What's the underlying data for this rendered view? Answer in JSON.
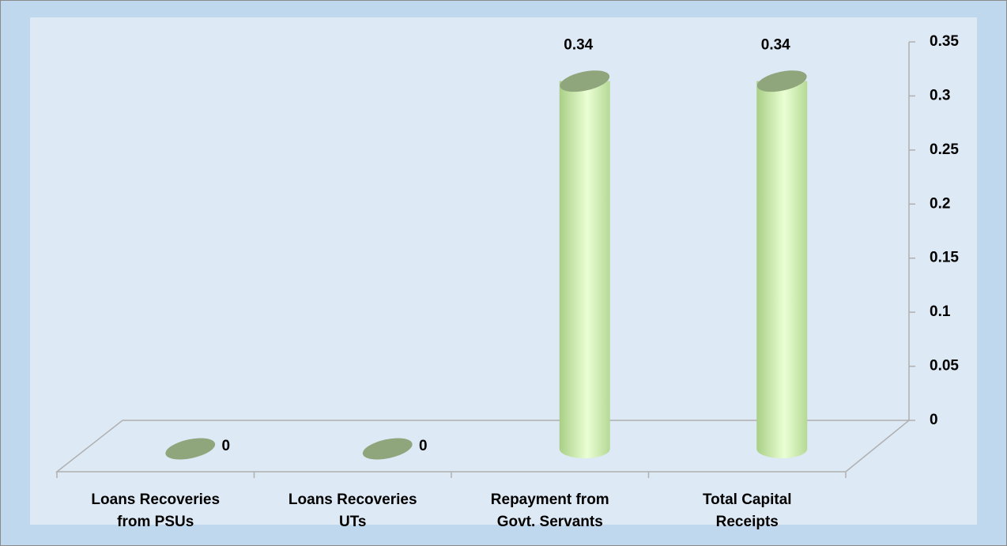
{
  "chart_data": {
    "type": "bar",
    "categories": [
      "Loans Recoveries from PSUs",
      "Loans Recoveries UTs",
      "Repayment from Govt. Servants",
      "Total Capital Receipts"
    ],
    "values": [
      0,
      0,
      0.34,
      0.34
    ],
    "color": "#c9e8a8",
    "ylim": [
      0,
      0.35
    ],
    "yticks": [
      0,
      0.05,
      0.1,
      0.15,
      0.2,
      0.25,
      0.3,
      0.35
    ]
  }
}
